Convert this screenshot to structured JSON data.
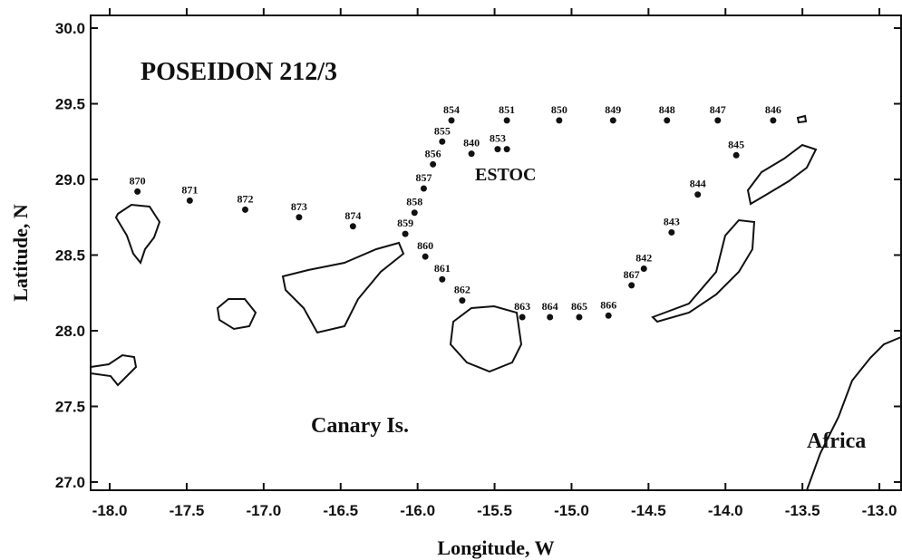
{
  "chart_data": {
    "type": "scatter",
    "xlabel": "Longitude, W",
    "ylabel": "Latitude, N",
    "annotations": [
      "POSEIDON 212/3",
      "ESTOC",
      "Canary Is.",
      "Africa"
    ],
    "color": "#111111",
    "xlim": [
      -18.124,
      -12.859
    ],
    "ylim": [
      26.946,
      30.084
    ],
    "xticks": [
      {
        "value": -18,
        "label": "-18.0"
      },
      -17.5,
      {
        "value": -17,
        "label": "-17.0"
      },
      -16.5,
      {
        "value": -16,
        "label": "-16.0"
      },
      -15.5,
      {
        "value": -15,
        "label": "-15.0"
      },
      -14.5,
      {
        "value": -14,
        "label": "-14.0"
      },
      -13.5,
      {
        "value": -13,
        "label": "-13.0"
      }
    ],
    "yticks": [
      {
        "value": 27,
        "label": "27.0"
      },
      27.5,
      {
        "value": 28,
        "label": "28.0"
      },
      28.5,
      {
        "value": 29,
        "label": "29.0"
      },
      29.5,
      {
        "value": 30,
        "label": "30.0"
      }
    ],
    "point_labels": [
      "870",
      "871",
      "872",
      "873",
      "874",
      "859",
      "858",
      "857",
      "856",
      "855",
      "854",
      "851",
      "850",
      "849",
      "848",
      "847",
      "846",
      "845",
      "844",
      "843",
      "842",
      "867",
      "866",
      "865",
      "864",
      "863",
      "862",
      "861",
      "860",
      "840",
      "853",
      null
    ],
    "x": [
      -17.82,
      -17.48,
      -17.12,
      -16.77,
      -16.42,
      -16.08,
      -16.02,
      -15.96,
      -15.9,
      -15.84,
      -15.78,
      -15.42,
      -15.08,
      -14.73,
      -14.38,
      -14.05,
      -13.69,
      -13.93,
      -14.18,
      -14.35,
      -14.53,
      -14.61,
      -14.76,
      -14.95,
      -15.14,
      -15.32,
      -15.71,
      -15.84,
      -15.95,
      -15.65,
      -15.48,
      -15.42
    ],
    "values": [
      28.92,
      28.86,
      28.8,
      28.75,
      28.69,
      28.64,
      28.78,
      28.94,
      29.1,
      29.25,
      29.39,
      29.39,
      29.39,
      29.39,
      29.39,
      29.39,
      29.39,
      29.16,
      28.9,
      28.65,
      28.41,
      28.3,
      28.1,
      28.09,
      28.09,
      28.09,
      28.2,
      28.34,
      28.49,
      29.17,
      29.2,
      29.2
    ]
  }
}
